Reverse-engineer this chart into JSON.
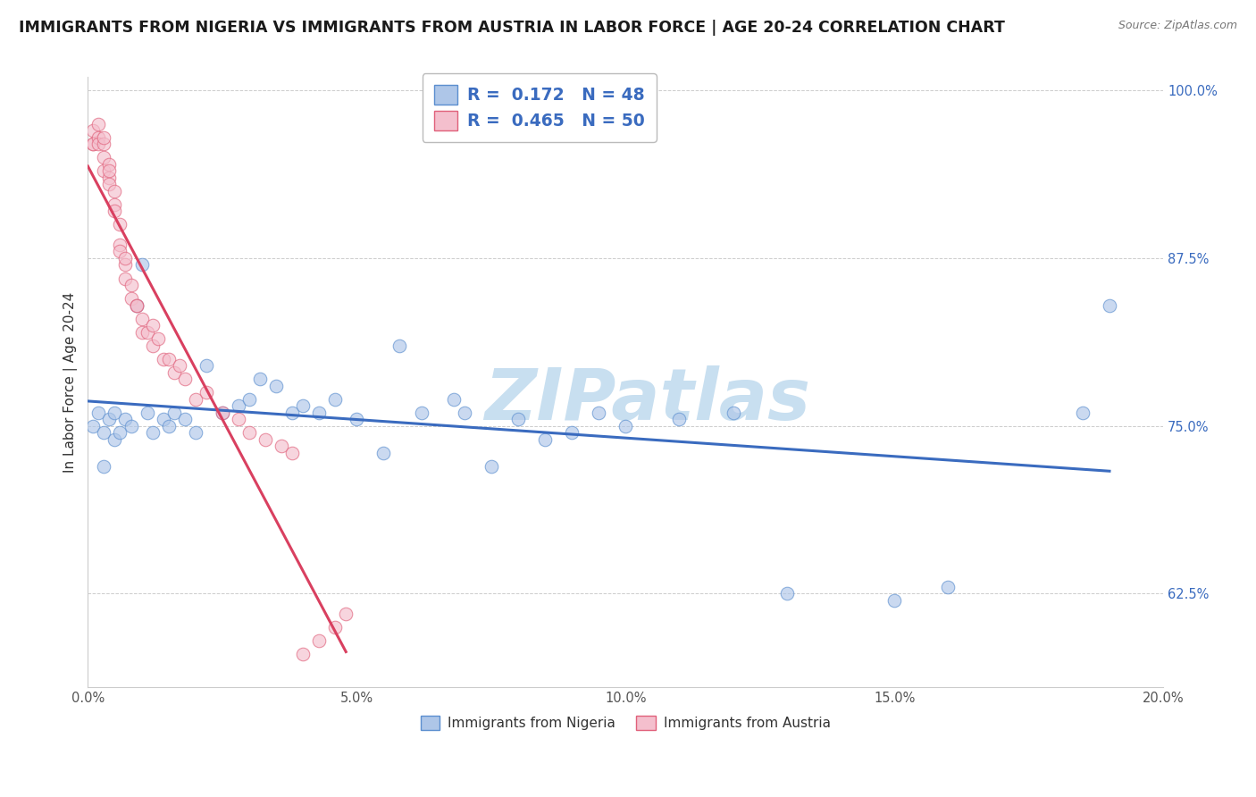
{
  "title": "IMMIGRANTS FROM NIGERIA VS IMMIGRANTS FROM AUSTRIA IN LABOR FORCE | AGE 20-24 CORRELATION CHART",
  "source": "Source: ZipAtlas.com",
  "ylabel": "In Labor Force | Age 20-24",
  "xlim": [
    0.0,
    0.2
  ],
  "ylim": [
    0.555,
    1.01
  ],
  "xtick_labels": [
    "0.0%",
    "5.0%",
    "10.0%",
    "15.0%",
    "20.0%"
  ],
  "xtick_values": [
    0.0,
    0.05,
    0.1,
    0.15,
    0.2
  ],
  "ytick_labels": [
    "62.5%",
    "75.0%",
    "87.5%",
    "100.0%"
  ],
  "ytick_values": [
    0.625,
    0.75,
    0.875,
    1.0
  ],
  "nigeria_color": "#aec6e8",
  "nigeria_edge_color": "#5b8ecf",
  "austria_color": "#f4bfcd",
  "austria_edge_color": "#e0607a",
  "nigeria_line_color": "#3a6bbf",
  "austria_line_color": "#d94060",
  "legend_nigeria_label": "Immigrants from Nigeria",
  "legend_austria_label": "Immigrants from Austria",
  "nigeria_R": "0.172",
  "nigeria_N": "48",
  "austria_R": "0.465",
  "austria_N": "50",
  "nigeria_x": [
    0.001,
    0.002,
    0.003,
    0.003,
    0.004,
    0.005,
    0.005,
    0.006,
    0.007,
    0.008,
    0.009,
    0.01,
    0.011,
    0.012,
    0.014,
    0.015,
    0.016,
    0.018,
    0.02,
    0.022,
    0.025,
    0.028,
    0.03,
    0.032,
    0.035,
    0.038,
    0.04,
    0.043,
    0.046,
    0.05,
    0.055,
    0.058,
    0.062,
    0.068,
    0.07,
    0.075,
    0.08,
    0.085,
    0.09,
    0.095,
    0.1,
    0.11,
    0.12,
    0.13,
    0.15,
    0.16,
    0.185,
    0.19
  ],
  "nigeria_y": [
    0.75,
    0.76,
    0.745,
    0.72,
    0.755,
    0.74,
    0.76,
    0.745,
    0.755,
    0.75,
    0.84,
    0.87,
    0.76,
    0.745,
    0.755,
    0.75,
    0.76,
    0.755,
    0.745,
    0.795,
    0.76,
    0.765,
    0.77,
    0.785,
    0.78,
    0.76,
    0.765,
    0.76,
    0.77,
    0.755,
    0.73,
    0.81,
    0.76,
    0.77,
    0.76,
    0.72,
    0.755,
    0.74,
    0.745,
    0.76,
    0.75,
    0.755,
    0.76,
    0.625,
    0.62,
    0.63,
    0.76,
    0.84
  ],
  "austria_x": [
    0.001,
    0.001,
    0.001,
    0.002,
    0.002,
    0.002,
    0.003,
    0.003,
    0.003,
    0.003,
    0.004,
    0.004,
    0.004,
    0.004,
    0.005,
    0.005,
    0.005,
    0.006,
    0.006,
    0.006,
    0.007,
    0.007,
    0.007,
    0.008,
    0.008,
    0.009,
    0.009,
    0.01,
    0.01,
    0.011,
    0.012,
    0.012,
    0.013,
    0.014,
    0.015,
    0.016,
    0.017,
    0.018,
    0.02,
    0.022,
    0.025,
    0.028,
    0.03,
    0.033,
    0.036,
    0.038,
    0.04,
    0.043,
    0.046,
    0.048
  ],
  "austria_y": [
    0.97,
    0.96,
    0.96,
    0.965,
    0.975,
    0.96,
    0.96,
    0.965,
    0.95,
    0.94,
    0.945,
    0.935,
    0.94,
    0.93,
    0.925,
    0.915,
    0.91,
    0.9,
    0.885,
    0.88,
    0.87,
    0.86,
    0.875,
    0.855,
    0.845,
    0.84,
    0.84,
    0.83,
    0.82,
    0.82,
    0.81,
    0.825,
    0.815,
    0.8,
    0.8,
    0.79,
    0.795,
    0.785,
    0.77,
    0.775,
    0.76,
    0.755,
    0.745,
    0.74,
    0.735,
    0.73,
    0.58,
    0.59,
    0.6,
    0.61
  ],
  "background_color": "#ffffff",
  "grid_color": "#cccccc",
  "watermark_text": "ZIPatlas",
  "watermark_color": "#c8dff0",
  "marker_size": 110,
  "marker_alpha": 0.65,
  "title_fontsize": 12.5,
  "axis_label_fontsize": 11,
  "tick_fontsize": 10.5
}
